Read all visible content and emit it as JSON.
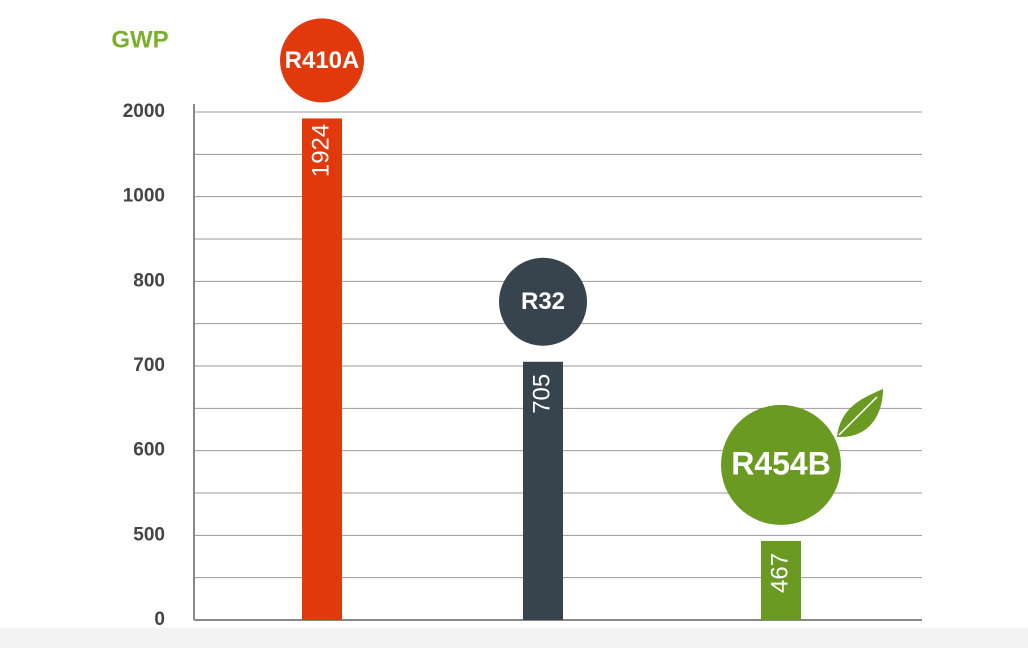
{
  "chart_data": {
    "type": "bar",
    "y_label": "GWP",
    "categories": [
      "R410A",
      "R32",
      "R454B"
    ],
    "values": [
      1924,
      705,
      467
    ],
    "colors": [
      "#e2390c",
      "#37434d",
      "#6b9a22"
    ],
    "ylim": [
      0,
      2000
    ],
    "yticks": [
      0,
      500,
      600,
      700,
      800,
      1000,
      2000
    ],
    "grid": true
  }
}
